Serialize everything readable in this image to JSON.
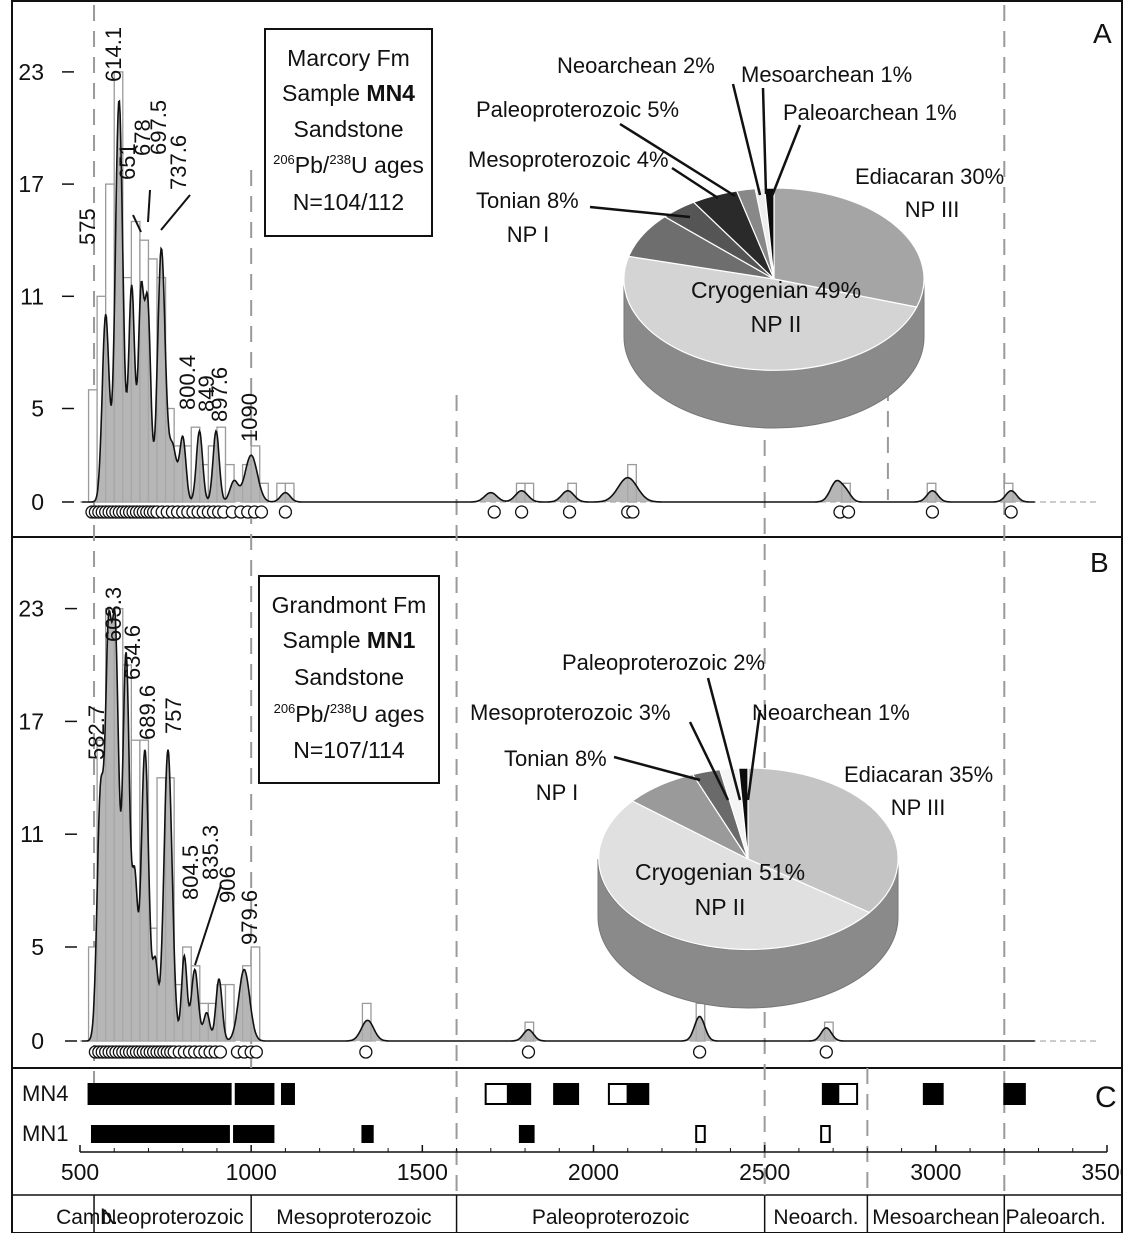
{
  "chart_data": [
    {
      "panel": "A",
      "type": "histogram+kde+pie",
      "sample_box": [
        "Marcory Fm",
        "Sample",
        "MN4",
        "Sandstone",
        "206",
        "Pb/",
        "238",
        "U ages",
        "N=104/112"
      ],
      "y_ticks": [
        0,
        5,
        11,
        17,
        23
      ],
      "xlim": [
        500,
        3500
      ],
      "peaks": [
        575,
        614.1,
        651,
        678,
        697.5,
        737.6,
        800.4,
        849,
        897.6,
        1090
      ],
      "peak_labels": [
        "575",
        "614.1",
        "651",
        "678",
        "697.5",
        "737.6",
        "800.4",
        "849",
        "897.6",
        "1090"
      ],
      "histogram": [
        {
          "x0": 525,
          "x1": 550,
          "count": 6
        },
        {
          "x0": 550,
          "x1": 575,
          "count": 11
        },
        {
          "x0": 575,
          "x1": 600,
          "count": 17
        },
        {
          "x0": 600,
          "x1": 625,
          "count": 23
        },
        {
          "x0": 625,
          "x1": 650,
          "count": 12
        },
        {
          "x0": 650,
          "x1": 675,
          "count": 15
        },
        {
          "x0": 675,
          "x1": 700,
          "count": 14
        },
        {
          "x0": 700,
          "x1": 725,
          "count": 13
        },
        {
          "x0": 725,
          "x1": 750,
          "count": 12
        },
        {
          "x0": 750,
          "x1": 775,
          "count": 5
        },
        {
          "x0": 775,
          "x1": 800,
          "count": 3
        },
        {
          "x0": 800,
          "x1": 825,
          "count": 3
        },
        {
          "x0": 825,
          "x1": 850,
          "count": 4
        },
        {
          "x0": 850,
          "x1": 875,
          "count": 2
        },
        {
          "x0": 875,
          "x1": 900,
          "count": 3
        },
        {
          "x0": 900,
          "x1": 925,
          "count": 4
        },
        {
          "x0": 925,
          "x1": 950,
          "count": 2
        },
        {
          "x0": 975,
          "x1": 1000,
          "count": 2
        },
        {
          "x0": 1000,
          "x1": 1025,
          "count": 3
        },
        {
          "x0": 1025,
          "x1": 1050,
          "count": 1
        },
        {
          "x0": 1075,
          "x1": 1100,
          "count": 1
        },
        {
          "x0": 1100,
          "x1": 1125,
          "count": 1
        },
        {
          "x0": 1775,
          "x1": 1800,
          "count": 1
        },
        {
          "x0": 1800,
          "x1": 1825,
          "count": 1
        },
        {
          "x0": 1925,
          "x1": 1950,
          "count": 1
        },
        {
          "x0": 2100,
          "x1": 2125,
          "count": 2
        },
        {
          "x0": 2725,
          "x1": 2750,
          "count": 1
        },
        {
          "x0": 2975,
          "x1": 3000,
          "count": 1
        },
        {
          "x0": 3200,
          "x1": 3225,
          "count": 1
        }
      ],
      "kde_components": [
        {
          "mu": 575,
          "sigma": 10,
          "h": 10.0
        },
        {
          "mu": 614.1,
          "sigma": 11,
          "h": 21.5
        },
        {
          "mu": 651,
          "sigma": 9,
          "h": 11.5
        },
        {
          "mu": 678,
          "sigma": 8,
          "h": 10.5
        },
        {
          "mu": 697.5,
          "sigma": 9,
          "h": 10.5
        },
        {
          "mu": 737.6,
          "sigma": 11,
          "h": 13.5
        },
        {
          "mu": 770,
          "sigma": 12,
          "h": 3.0
        },
        {
          "mu": 800.4,
          "sigma": 9,
          "h": 3.4
        },
        {
          "mu": 849,
          "sigma": 9,
          "h": 3.8
        },
        {
          "mu": 897.6,
          "sigma": 9,
          "h": 3.8
        },
        {
          "mu": 950,
          "sigma": 12,
          "h": 1.1
        },
        {
          "mu": 1000,
          "sigma": 18,
          "h": 2.5
        },
        {
          "mu": 1100,
          "sigma": 14,
          "h": 0.5
        },
        {
          "mu": 1700,
          "sigma": 18,
          "h": 0.5
        },
        {
          "mu": 1790,
          "sigma": 18,
          "h": 0.6
        },
        {
          "mu": 1925,
          "sigma": 18,
          "h": 0.6
        },
        {
          "mu": 2100,
          "sigma": 28,
          "h": 1.3
        },
        {
          "mu": 2710,
          "sigma": 18,
          "h": 1.1
        },
        {
          "mu": 2740,
          "sigma": 14,
          "h": 0.4
        },
        {
          "mu": 2990,
          "sigma": 16,
          "h": 0.6
        },
        {
          "mu": 3220,
          "sigma": 16,
          "h": 0.6
        }
      ],
      "circles": [
        535,
        545,
        555,
        565,
        575,
        585,
        595,
        605,
        615,
        625,
        635,
        645,
        655,
        665,
        675,
        685,
        695,
        705,
        715,
        725,
        740,
        755,
        770,
        785,
        800,
        815,
        830,
        845,
        860,
        875,
        890,
        905,
        920,
        945,
        970,
        990,
        1010,
        1030,
        1100,
        1710,
        1790,
        1930,
        2100,
        2115,
        2720,
        2745,
        2990,
        3220
      ],
      "pie": {
        "slices": [
          {
            "label": "Ediacaran 30%",
            "sub": "NP III",
            "value": 30,
            "color": "#a5a5a5"
          },
          {
            "label": "Cryogenian 49%",
            "sub": "NP II",
            "value": 49,
            "color": "#d4d4d4"
          },
          {
            "label": "Tonian 8%",
            "sub": "NP I",
            "value": 8,
            "color": "#6e6e6e"
          },
          {
            "label": "Mesoproterozoic 4%",
            "sub": "",
            "value": 4,
            "color": "#555555"
          },
          {
            "label": "Paleoproterozoic 5%",
            "sub": "",
            "value": 5,
            "color": "#2a2a2a"
          },
          {
            "label": "Neoarchean 2%",
            "sub": "",
            "value": 2,
            "color": "#888888"
          },
          {
            "label": "Mesoarchean 1%",
            "sub": "",
            "value": 1,
            "color": "#eeeeee"
          },
          {
            "label": "Paleoarchean 1%",
            "sub": "",
            "value": 1,
            "color": "#0d0d0d"
          }
        ]
      }
    },
    {
      "panel": "B",
      "type": "histogram+kde+pie",
      "sample_box": [
        "Grandmont Fm",
        "Sample",
        "MN1",
        "Sandstone",
        "206",
        "Pb/",
        "238",
        "U ages",
        "N=107/114"
      ],
      "y_ticks": [
        0,
        5,
        11,
        17,
        23
      ],
      "xlim": [
        500,
        3500
      ],
      "peaks": [
        582.7,
        603.3,
        634.6,
        689.6,
        757,
        804.5,
        835.3,
        906,
        979.6
      ],
      "peak_labels": [
        "582.7",
        "603.3",
        "634.6",
        "689.6",
        "757",
        "804.5",
        "835.3",
        "906",
        "979.6"
      ],
      "histogram": [
        {
          "x0": 525,
          "x1": 550,
          "count": 5
        },
        {
          "x0": 550,
          "x1": 575,
          "count": 16
        },
        {
          "x0": 575,
          "x1": 600,
          "count": 23
        },
        {
          "x0": 600,
          "x1": 625,
          "count": 23
        },
        {
          "x0": 625,
          "x1": 650,
          "count": 20
        },
        {
          "x0": 650,
          "x1": 675,
          "count": 16
        },
        {
          "x0": 675,
          "x1": 700,
          "count": 16
        },
        {
          "x0": 700,
          "x1": 725,
          "count": 6
        },
        {
          "x0": 725,
          "x1": 750,
          "count": 14
        },
        {
          "x0": 750,
          "x1": 775,
          "count": 14
        },
        {
          "x0": 775,
          "x1": 800,
          "count": 3
        },
        {
          "x0": 800,
          "x1": 825,
          "count": 5
        },
        {
          "x0": 825,
          "x1": 850,
          "count": 4
        },
        {
          "x0": 850,
          "x1": 875,
          "count": 2
        },
        {
          "x0": 875,
          "x1": 900,
          "count": 2
        },
        {
          "x0": 900,
          "x1": 925,
          "count": 3
        },
        {
          "x0": 925,
          "x1": 950,
          "count": 3
        },
        {
          "x0": 975,
          "x1": 1000,
          "count": 4
        },
        {
          "x0": 1000,
          "x1": 1025,
          "count": 5
        },
        {
          "x0": 1325,
          "x1": 1350,
          "count": 2
        },
        {
          "x0": 1800,
          "x1": 1825,
          "count": 1
        },
        {
          "x0": 2300,
          "x1": 2325,
          "count": 2
        },
        {
          "x0": 2675,
          "x1": 2700,
          "count": 1
        }
      ],
      "kde_components": [
        {
          "mu": 560,
          "sigma": 10,
          "h": 13.0
        },
        {
          "mu": 582.7,
          "sigma": 9,
          "h": 19.0
        },
        {
          "mu": 603.3,
          "sigma": 10,
          "h": 21.0
        },
        {
          "mu": 634.6,
          "sigma": 10,
          "h": 20.5
        },
        {
          "mu": 660,
          "sigma": 8,
          "h": 8.0
        },
        {
          "mu": 689.6,
          "sigma": 11,
          "h": 15.5
        },
        {
          "mu": 720,
          "sigma": 8,
          "h": 4.0
        },
        {
          "mu": 757,
          "sigma": 12,
          "h": 15.5
        },
        {
          "mu": 804.5,
          "sigma": 8,
          "h": 4.5
        },
        {
          "mu": 835.3,
          "sigma": 10,
          "h": 3.8
        },
        {
          "mu": 870,
          "sigma": 9,
          "h": 1.5
        },
        {
          "mu": 906,
          "sigma": 9,
          "h": 3.3
        },
        {
          "mu": 979.6,
          "sigma": 16,
          "h": 3.8
        },
        {
          "mu": 1340,
          "sigma": 18,
          "h": 1.1
        },
        {
          "mu": 1810,
          "sigma": 15,
          "h": 0.6
        },
        {
          "mu": 2310,
          "sigma": 15,
          "h": 1.3
        },
        {
          "mu": 2680,
          "sigma": 15,
          "h": 0.7
        }
      ],
      "circles": [
        545,
        555,
        565,
        575,
        585,
        595,
        605,
        615,
        625,
        635,
        645,
        655,
        665,
        675,
        685,
        695,
        705,
        715,
        725,
        735,
        745,
        755,
        765,
        775,
        790,
        805,
        820,
        835,
        850,
        865,
        880,
        895,
        910,
        960,
        980,
        1000,
        1015,
        1335,
        1810,
        2310,
        2680
      ],
      "pie": {
        "slices": [
          {
            "label": "Ediacaran 35%",
            "sub": "NP III",
            "value": 35,
            "color": "#c4c4c4"
          },
          {
            "label": "Cryogenian 51%",
            "sub": "NP II",
            "value": 51,
            "color": "#e0e0e0"
          },
          {
            "label": "Tonian 8%",
            "sub": "NP I",
            "value": 8,
            "color": "#9a9a9a"
          },
          {
            "label": "Mesoproterozoic 3%",
            "sub": "",
            "value": 3,
            "color": "#6a6a6a"
          },
          {
            "label": "Paleoproterozoic 2%",
            "sub": "",
            "value": 2,
            "color": "#f4f4f4"
          },
          {
            "label": "Neoarchean 1%",
            "sub": "",
            "value": 1,
            "color": "#0d0d0d"
          }
        ]
      }
    },
    {
      "panel": "C",
      "type": "range-bars",
      "rows": [
        {
          "name": "MN4",
          "bars": [
            {
              "from": 525,
              "to": 940,
              "fill": "black"
            },
            {
              "from": 955,
              "to": 1065,
              "fill": "black"
            },
            {
              "from": 1090,
              "to": 1125,
              "fill": "black"
            },
            {
              "from": 1685,
              "to": 1750,
              "fill": "white"
            },
            {
              "from": 1750,
              "to": 1815,
              "fill": "black"
            },
            {
              "from": 1885,
              "to": 1955,
              "fill": "black"
            },
            {
              "from": 2045,
              "to": 2100,
              "fill": "white"
            },
            {
              "from": 2100,
              "to": 2160,
              "fill": "black"
            },
            {
              "from": 2670,
              "to": 2715,
              "fill": "black"
            },
            {
              "from": 2715,
              "to": 2770,
              "fill": "white"
            },
            {
              "from": 2965,
              "to": 3020,
              "fill": "black"
            },
            {
              "from": 3200,
              "to": 3260,
              "fill": "black"
            }
          ]
        },
        {
          "name": "MN1",
          "bars": [
            {
              "from": 535,
              "to": 935,
              "fill": "black"
            },
            {
              "from": 950,
              "to": 1065,
              "fill": "black"
            },
            {
              "from": 1325,
              "to": 1355,
              "fill": "black"
            },
            {
              "from": 1785,
              "to": 1825,
              "fill": "black"
            },
            {
              "from": 2300,
              "to": 2325,
              "fill": "white"
            },
            {
              "from": 2665,
              "to": 2690,
              "fill": "white"
            }
          ]
        }
      ]
    }
  ],
  "x_ticks": [
    500,
    1000,
    1500,
    2000,
    2500,
    3000,
    3500
  ],
  "boundaries": [
    541,
    1000,
    1600,
    2500,
    2800,
    3200
  ],
  "eon_labels": [
    "Camb.",
    "Neoproterozoic",
    "Mesoproterozoic",
    "Paleoproterozoic",
    "Neoarch.",
    "Mesoarchean",
    "Paleoarch."
  ],
  "eon_ranges": [
    [
      500,
      541
    ],
    [
      541,
      1000
    ],
    [
      1000,
      1600
    ],
    [
      1600,
      2500
    ],
    [
      2500,
      2800
    ],
    [
      2800,
      3200
    ],
    [
      3200,
      3500
    ]
  ],
  "panel_letters": [
    "A",
    "B",
    "C"
  ]
}
